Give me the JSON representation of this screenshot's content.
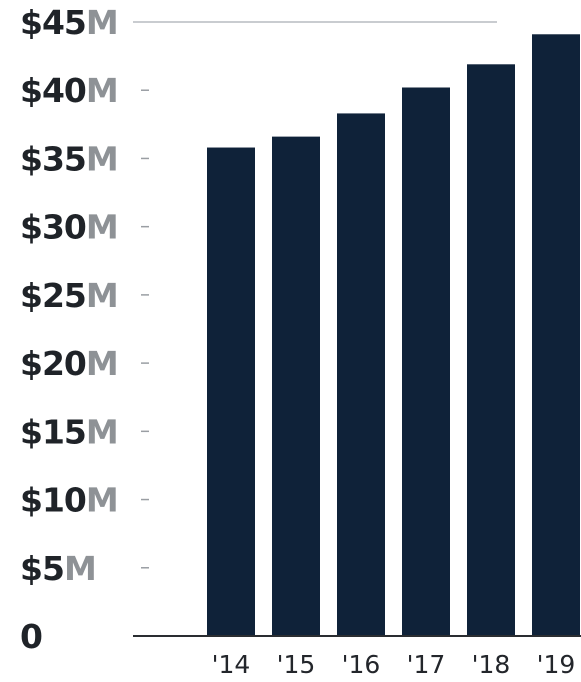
{
  "chart_data": {
    "type": "bar",
    "categories": [
      "'14",
      "'15",
      "'16",
      "'17",
      "'18",
      "'19"
    ],
    "values": [
      35.8,
      36.6,
      38.3,
      40.2,
      41.9,
      44.1
    ],
    "title": "",
    "xlabel": "",
    "ylabel": "",
    "ylim": [
      0,
      45
    ],
    "ytick_values": [
      0,
      5,
      10,
      15,
      20,
      25,
      30,
      35,
      40,
      45
    ],
    "ytick_labels": [
      {
        "prefix": "",
        "suffix": "0"
      },
      {
        "prefix": "$5",
        "suffix": "M"
      },
      {
        "prefix": "$10",
        "suffix": "M"
      },
      {
        "prefix": "$15",
        "suffix": "M"
      },
      {
        "prefix": "$20",
        "suffix": "M"
      },
      {
        "prefix": "$25",
        "suffix": "M"
      },
      {
        "prefix": "$30",
        "suffix": "M"
      },
      {
        "prefix": "$35",
        "suffix": "M"
      },
      {
        "prefix": "$40",
        "suffix": "M"
      },
      {
        "prefix": "$45",
        "suffix": "M"
      }
    ],
    "grid": false,
    "colors": {
      "bar": "#0f2239",
      "label_dark": "#1f2328",
      "label_light": "#8e9296",
      "axis": "#2a2d31",
      "tick": "#9a9ea3",
      "top_line": "#c9ccd0"
    }
  }
}
